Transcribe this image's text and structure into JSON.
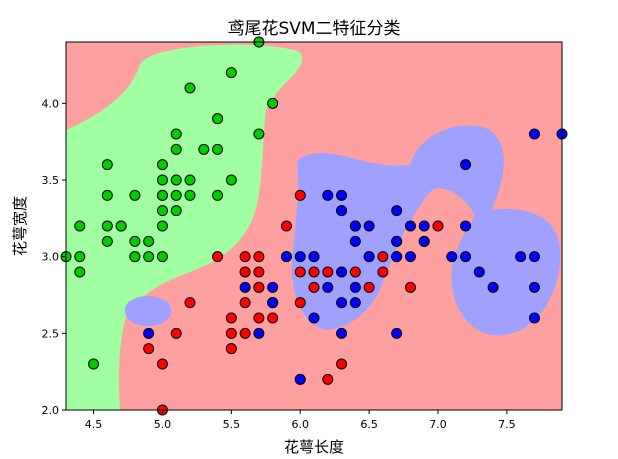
{
  "chart_data": {
    "type": "scatter",
    "title": "鸢尾花SVM二特征分类",
    "xlabel": "花萼长度",
    "ylabel": "花萼宽度",
    "xlim": [
      4.3,
      7.9
    ],
    "ylim": [
      2.0,
      4.4
    ],
    "xticks": [
      "4.5",
      "5.0",
      "5.5",
      "6.0",
      "6.5",
      "7.0",
      "7.5"
    ],
    "yticks": [
      "2.0",
      "2.5",
      "3.0",
      "3.5",
      "4.0"
    ],
    "grid": false,
    "legend": "none",
    "region_colors": {
      "background": "#ffa0a0",
      "green": "#a0ffa0",
      "blue": "#a0a0ff"
    },
    "series": [
      {
        "color": "#00cc00",
        "x": [
          4.3,
          4.4,
          4.4,
          4.4,
          4.5,
          4.6,
          4.6,
          4.6,
          4.6,
          4.7,
          4.7,
          4.8,
          4.8,
          4.8,
          4.8,
          4.9,
          4.9,
          5.0,
          5.0,
          5.0,
          5.0,
          5.0,
          5.0,
          5.0,
          5.1,
          5.1,
          5.1,
          5.1,
          5.1,
          5.2,
          5.2,
          5.2,
          5.3,
          5.4,
          5.4,
          5.4,
          5.4,
          5.5,
          5.5,
          5.7,
          5.7,
          5.8
        ],
        "y": [
          3.0,
          3.2,
          3.0,
          2.9,
          2.3,
          3.6,
          3.2,
          3.1,
          3.4,
          3.2,
          3.2,
          3.0,
          3.1,
          3.4,
          3.0,
          3.0,
          3.1,
          3.6,
          3.4,
          3.5,
          3.2,
          3.3,
          3.0,
          3.4,
          3.5,
          3.8,
          3.7,
          3.3,
          3.4,
          3.5,
          3.4,
          4.1,
          3.7,
          3.9,
          3.4,
          3.7,
          3.9,
          4.2,
          3.5,
          4.4,
          3.8,
          4.0
        ]
      },
      {
        "color": "#ff0000",
        "x": [
          4.9,
          5.0,
          5.0,
          5.1,
          5.2,
          5.4,
          5.5,
          5.5,
          5.5,
          5.5,
          5.6,
          5.6,
          5.6,
          5.6,
          5.6,
          5.7,
          5.7,
          5.7,
          5.7,
          5.7,
          5.8,
          5.8,
          5.8,
          5.9,
          5.9,
          6.0,
          6.0,
          6.0,
          6.0,
          6.1,
          6.1,
          6.1,
          6.2,
          6.2,
          6.3,
          6.3,
          6.4,
          6.4,
          6.5,
          6.6,
          6.6,
          6.7,
          6.7,
          6.8,
          6.9,
          7.0
        ],
        "y": [
          2.4,
          2.3,
          2.0,
          2.5,
          2.7,
          3.0,
          2.4,
          2.4,
          2.6,
          2.5,
          2.9,
          3.0,
          2.7,
          2.5,
          2.9,
          2.6,
          2.8,
          3.0,
          2.9,
          2.8,
          2.7,
          2.6,
          2.7,
          3.0,
          3.2,
          3.4,
          2.9,
          2.7,
          2.2,
          2.9,
          2.8,
          3.0,
          2.2,
          2.9,
          2.3,
          3.3,
          3.2,
          2.9,
          2.8,
          3.0,
          2.9,
          3.1,
          3.0,
          2.8,
          3.1,
          3.2
        ]
      },
      {
        "color": "#0000ff",
        "x": [
          4.9,
          5.6,
          5.7,
          5.8,
          5.8,
          5.8,
          5.9,
          6.0,
          6.0,
          6.1,
          6.1,
          6.2,
          6.2,
          6.3,
          6.3,
          6.3,
          6.3,
          6.3,
          6.4,
          6.4,
          6.4,
          6.4,
          6.5,
          6.5,
          6.5,
          6.7,
          6.7,
          6.7,
          6.7,
          6.8,
          6.8,
          6.9,
          6.9,
          7.1,
          7.2,
          7.2,
          7.2,
          7.3,
          7.4,
          7.6,
          7.7,
          7.7,
          7.7,
          7.7,
          7.9
        ],
        "y": [
          2.5,
          2.8,
          2.5,
          2.8,
          2.7,
          2.7,
          3.0,
          2.2,
          3.0,
          2.6,
          3.0,
          2.8,
          3.4,
          3.4,
          2.9,
          2.5,
          2.7,
          3.3,
          2.8,
          3.2,
          3.1,
          2.7,
          3.0,
          3.2,
          3.0,
          3.3,
          3.1,
          3.0,
          2.5,
          3.2,
          3.0,
          3.1,
          3.2,
          3.0,
          3.6,
          3.2,
          3.0,
          2.9,
          2.8,
          3.0,
          3.8,
          2.6,
          2.8,
          3.0,
          3.8
        ]
      }
    ]
  }
}
